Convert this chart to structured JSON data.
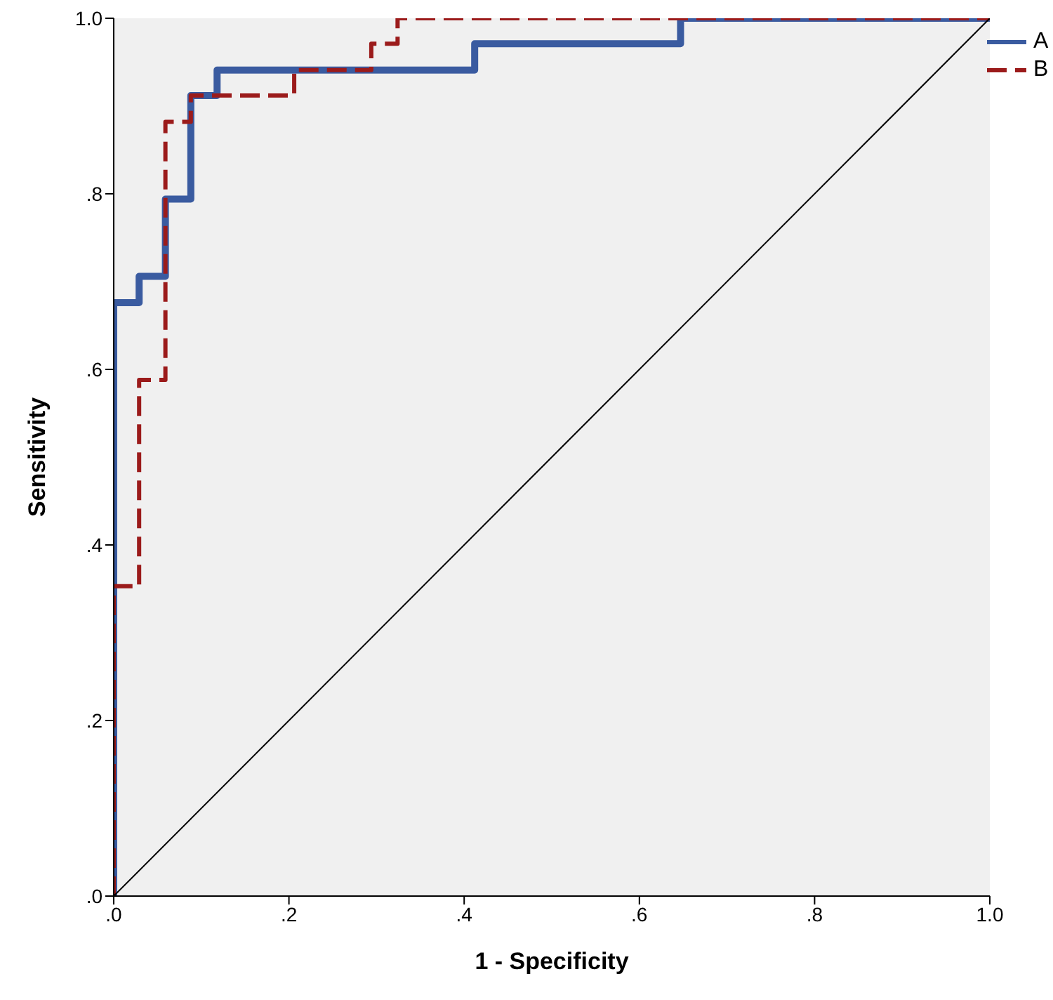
{
  "chart_data": {
    "type": "line",
    "xlabel": "1 - Specificity",
    "ylabel": "Sensitivity",
    "xlim": [
      0,
      1
    ],
    "ylim": [
      0,
      1
    ],
    "xticks": [
      {
        "value": 0,
        "label": ".0"
      },
      {
        "value": 0.2,
        "label": ".2"
      },
      {
        "value": 0.4,
        "label": ".4"
      },
      {
        "value": 0.6,
        "label": ".6"
      },
      {
        "value": 0.8,
        "label": ".8"
      },
      {
        "value": 1,
        "label": "1.0"
      }
    ],
    "yticks": [
      {
        "value": 0,
        "label": ".0"
      },
      {
        "value": 0.2,
        "label": ".2"
      },
      {
        "value": 0.4,
        "label": ".4"
      },
      {
        "value": 0.6,
        "label": ".6"
      },
      {
        "value": 0.8,
        "label": ".8"
      },
      {
        "value": 1,
        "label": "1.0"
      }
    ],
    "grid": false,
    "legend": "top right",
    "marker": "none",
    "line_style": "solid",
    "series": [
      {
        "name": "A",
        "color": "#3a5ba0",
        "line_style": "solid",
        "x": [
          0,
          0,
          0.029,
          0.029,
          0.059,
          0.059,
          0.088,
          0.088,
          0.118,
          0.118,
          0.412,
          0.412,
          0.647,
          0.647,
          1
        ],
        "values": [
          0,
          0.676,
          0.676,
          0.706,
          0.706,
          0.794,
          0.794,
          0.912,
          0.912,
          0.941,
          0.941,
          0.971,
          0.971,
          1,
          1
        ]
      },
      {
        "name": "B",
        "color": "#9b1b1b",
        "line_style": "dashed",
        "x": [
          0,
          0,
          0.029,
          0.029,
          0.059,
          0.059,
          0.088,
          0.088,
          0.206,
          0.206,
          0.294,
          0.294,
          0.324,
          0.324,
          1
        ],
        "values": [
          0,
          0.353,
          0.353,
          0.588,
          0.588,
          0.882,
          0.882,
          0.912,
          0.912,
          0.941,
          0.941,
          0.971,
          0.971,
          1,
          1
        ]
      },
      {
        "color": "#000000",
        "x": [
          0,
          1
        ],
        "values": [
          0,
          1
        ]
      }
    ]
  }
}
